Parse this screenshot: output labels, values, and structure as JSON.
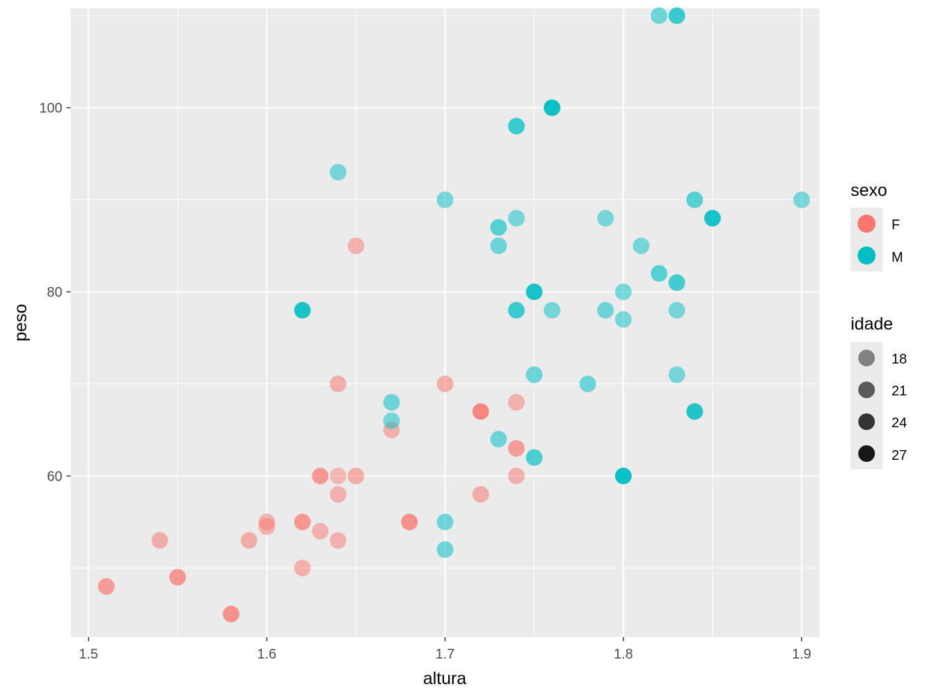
{
  "chart_data": {
    "type": "scatter",
    "title": "",
    "xlabel": "altura",
    "ylabel": "peso",
    "xlim": [
      1.49,
      1.91
    ],
    "ylim": [
      42.5,
      110.8
    ],
    "x_ticks": [
      1.5,
      1.6,
      1.7,
      1.8,
      1.9
    ],
    "x_tick_labels": [
      "1.5",
      "1.6",
      "1.7",
      "1.8",
      "1.9"
    ],
    "y_ticks": [
      60,
      80,
      100
    ],
    "y_tick_labels": [
      "60",
      "80",
      "100"
    ],
    "grid": true,
    "legend_placement": "right",
    "colors": {
      "F": "#F8766D",
      "M": "#00BFC4",
      "panel": "#EBEBEB",
      "grid": "#FFFFFF"
    },
    "legend": {
      "color": {
        "title": "sexo",
        "entries": [
          {
            "label": "F",
            "color": "#F8766D"
          },
          {
            "label": "M",
            "color": "#00BFC4"
          }
        ]
      },
      "alpha": {
        "title": "idade",
        "entries": [
          {
            "label": "18",
            "value": 18
          },
          {
            "label": "21",
            "value": 21
          },
          {
            "label": "24",
            "value": 24
          },
          {
            "label": "27",
            "value": 27
          }
        ]
      }
    },
    "series": [
      {
        "name": "F",
        "points": [
          {
            "x": 1.51,
            "y": 48,
            "idade": 22
          },
          {
            "x": 1.54,
            "y": 53,
            "idade": 19
          },
          {
            "x": 1.55,
            "y": 49,
            "idade": 23
          },
          {
            "x": 1.58,
            "y": 45,
            "idade": 24
          },
          {
            "x": 1.59,
            "y": 53,
            "idade": 19
          },
          {
            "x": 1.6,
            "y": 55,
            "idade": 18
          },
          {
            "x": 1.6,
            "y": 54.5,
            "idade": 18
          },
          {
            "x": 1.62,
            "y": 55,
            "idade": 23
          },
          {
            "x": 1.62,
            "y": 50,
            "idade": 18
          },
          {
            "x": 1.63,
            "y": 60,
            "idade": 23
          },
          {
            "x": 1.63,
            "y": 54,
            "idade": 18
          },
          {
            "x": 1.64,
            "y": 70,
            "idade": 19
          },
          {
            "x": 1.64,
            "y": 60,
            "idade": 17
          },
          {
            "x": 1.64,
            "y": 58,
            "idade": 18
          },
          {
            "x": 1.64,
            "y": 53,
            "idade": 18
          },
          {
            "x": 1.65,
            "y": 85,
            "idade": 18
          },
          {
            "x": 1.65,
            "y": 60,
            "idade": 19
          },
          {
            "x": 1.67,
            "y": 65,
            "idade": 18
          },
          {
            "x": 1.68,
            "y": 55,
            "idade": 24
          },
          {
            "x": 1.7,
            "y": 70,
            "idade": 19
          },
          {
            "x": 1.72,
            "y": 67,
            "idade": 26
          },
          {
            "x": 1.72,
            "y": 58,
            "idade": 19
          },
          {
            "x": 1.74,
            "y": 68,
            "idade": 18
          },
          {
            "x": 1.74,
            "y": 63,
            "idade": 22
          },
          {
            "x": 1.74,
            "y": 60,
            "idade": 18
          }
        ]
      },
      {
        "name": "M",
        "points": [
          {
            "x": 1.62,
            "y": 78,
            "idade": 27
          },
          {
            "x": 1.64,
            "y": 93,
            "idade": 18
          },
          {
            "x": 1.67,
            "y": 68,
            "idade": 19
          },
          {
            "x": 1.67,
            "y": 66,
            "idade": 18
          },
          {
            "x": 1.7,
            "y": 90,
            "idade": 18
          },
          {
            "x": 1.7,
            "y": 55,
            "idade": 19
          },
          {
            "x": 1.7,
            "y": 52,
            "idade": 19
          },
          {
            "x": 1.73,
            "y": 87,
            "idade": 21
          },
          {
            "x": 1.73,
            "y": 85,
            "idade": 19
          },
          {
            "x": 1.73,
            "y": 64,
            "idade": 19
          },
          {
            "x": 1.74,
            "y": 98,
            "idade": 24
          },
          {
            "x": 1.74,
            "y": 88,
            "idade": 18
          },
          {
            "x": 1.74,
            "y": 78,
            "idade": 24
          },
          {
            "x": 1.75,
            "y": 80,
            "idade": 27
          },
          {
            "x": 1.75,
            "y": 71,
            "idade": 19
          },
          {
            "x": 1.75,
            "y": 62,
            "idade": 22
          },
          {
            "x": 1.76,
            "y": 100,
            "idade": 28
          },
          {
            "x": 1.76,
            "y": 78,
            "idade": 18
          },
          {
            "x": 1.78,
            "y": 70,
            "idade": 19
          },
          {
            "x": 1.79,
            "y": 88,
            "idade": 18
          },
          {
            "x": 1.79,
            "y": 78,
            "idade": 19
          },
          {
            "x": 1.8,
            "y": 80,
            "idade": 18
          },
          {
            "x": 1.8,
            "y": 77,
            "idade": 18
          },
          {
            "x": 1.8,
            "y": 60,
            "idade": 28
          },
          {
            "x": 1.81,
            "y": 85,
            "idade": 18
          },
          {
            "x": 1.82,
            "y": 110,
            "idade": 19
          },
          {
            "x": 1.82,
            "y": 82,
            "idade": 21
          },
          {
            "x": 1.83,
            "y": 110,
            "idade": 24
          },
          {
            "x": 1.83,
            "y": 81,
            "idade": 23
          },
          {
            "x": 1.83,
            "y": 78,
            "idade": 18
          },
          {
            "x": 1.83,
            "y": 71,
            "idade": 18
          },
          {
            "x": 1.84,
            "y": 90,
            "idade": 21
          },
          {
            "x": 1.84,
            "y": 67,
            "idade": 26
          },
          {
            "x": 1.85,
            "y": 88,
            "idade": 27
          },
          {
            "x": 1.9,
            "y": 90,
            "idade": 18
          }
        ]
      }
    ]
  }
}
